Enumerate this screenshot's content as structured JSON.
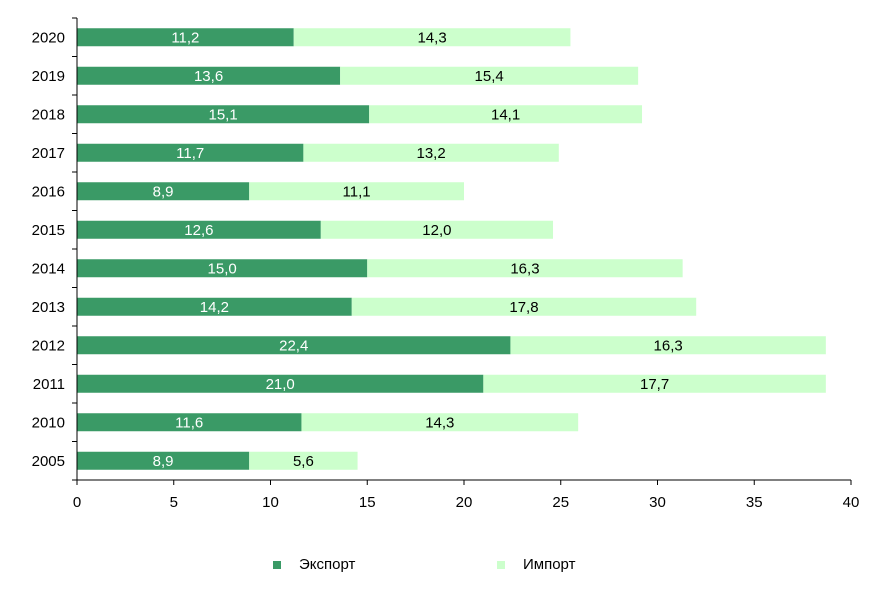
{
  "chart_data": {
    "type": "bar",
    "orientation": "horizontal",
    "stacked": true,
    "categories": [
      "2020",
      "2019",
      "2018",
      "2017",
      "2016",
      "2015",
      "2014",
      "2013",
      "2012",
      "2011",
      "2010",
      "2005"
    ],
    "series": [
      {
        "name": "Экспорт",
        "color": "#3a9a66",
        "label_color": "#ffffff",
        "values": [
          11.2,
          13.6,
          15.1,
          11.7,
          8.9,
          12.6,
          15.0,
          14.2,
          22.4,
          21.0,
          11.6,
          8.9
        ],
        "labels": [
          "11,2",
          "13,6",
          "15,1",
          "11,7",
          "8,9",
          "12,6",
          "15,0",
          "14,2",
          "22,4",
          "21,0",
          "11,6",
          "8,9"
        ]
      },
      {
        "name": "Импорт",
        "color": "#ccffcc",
        "label_color": "#000000",
        "values": [
          14.3,
          15.4,
          14.1,
          13.2,
          11.1,
          12.0,
          16.3,
          17.8,
          16.3,
          17.7,
          14.3,
          5.6
        ],
        "labels": [
          "14,3",
          "15,4",
          "14,1",
          "13,2",
          "11,1",
          "12,0",
          "16,3",
          "17,8",
          "16,3",
          "17,7",
          "14,3",
          "5,6"
        ]
      }
    ],
    "xlim": [
      0,
      40
    ],
    "xticks": [
      0,
      5,
      10,
      15,
      20,
      25,
      30,
      35,
      40
    ],
    "grid": false,
    "legend_position": "bottom",
    "title": "",
    "xlabel": "",
    "ylabel": ""
  }
}
